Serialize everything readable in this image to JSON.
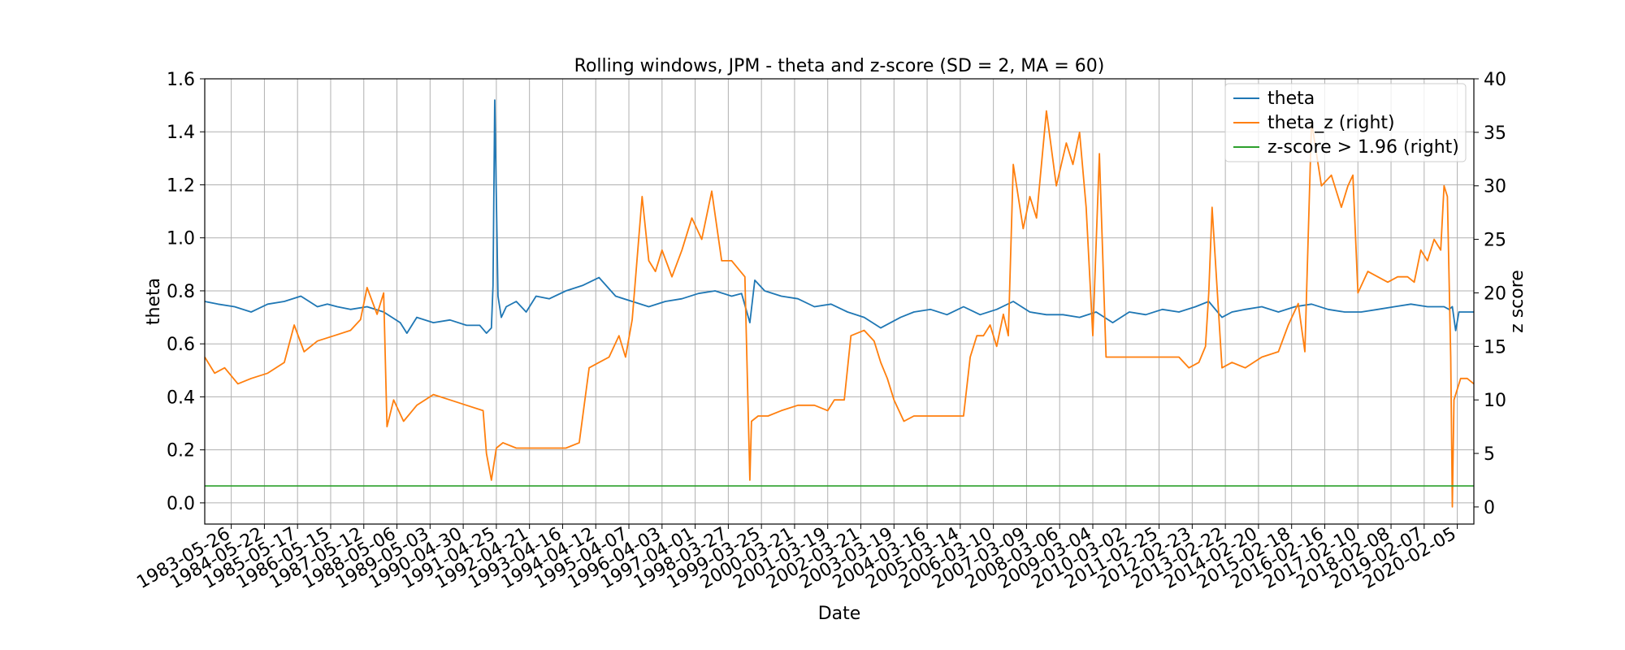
{
  "chart_data": {
    "type": "line",
    "title": "Rolling windows, JPM - theta and z-score (SD = 2, MA = 60)",
    "xlabel": "Date",
    "ylabel": "theta",
    "y2label": "z score",
    "ylim": [
      -0.08,
      1.6
    ],
    "y2lim": [
      -1.6,
      40
    ],
    "grid": true,
    "legend": "top-right",
    "y_ticks": [
      0.0,
      0.2,
      0.4,
      0.6,
      0.8,
      1.0,
      1.2,
      1.4,
      1.6
    ],
    "y_tick_labels": [
      "0.0",
      "0.2",
      "0.4",
      "0.6",
      "0.8",
      "1.0",
      "1.2",
      "1.4",
      "1.6"
    ],
    "y2_ticks": [
      0,
      5,
      10,
      15,
      20,
      25,
      30,
      35,
      40
    ],
    "y2_tick_labels": [
      "0",
      "5",
      "10",
      "15",
      "20",
      "25",
      "30",
      "35",
      "40"
    ],
    "x_tick_labels": [
      "1983-05-26",
      "1984-05-22",
      "1985-05-17",
      "1986-05-15",
      "1987-05-12",
      "1988-05-06",
      "1989-05-03",
      "1990-04-30",
      "1991-04-25",
      "1992-04-21",
      "1993-04-16",
      "1994-04-12",
      "1995-04-07",
      "1996-04-03",
      "1997-04-01",
      "1998-03-27",
      "1999-03-25",
      "2000-03-21",
      "2001-03-19",
      "2002-03-21",
      "2003-03-19",
      "2004-03-16",
      "2005-03-14",
      "2006-03-10",
      "2007-03-09",
      "2008-03-06",
      "2009-03-04",
      "2010-03-02",
      "2011-02-25",
      "2012-02-23",
      "2013-02-22",
      "2014-02-20",
      "2015-02-18",
      "2016-02-16",
      "2017-02-10",
      "2018-02-08",
      "2019-02-07",
      "2020-02-05"
    ],
    "x_range": [
      1982.6,
      2020.9
    ],
    "series": [
      {
        "name": "theta",
        "axis": "left",
        "color": "#1f77b4",
        "x": [
          1982.6,
          1983.0,
          1983.5,
          1984.0,
          1984.5,
          1985.0,
          1985.5,
          1986.0,
          1986.3,
          1986.6,
          1987.0,
          1987.5,
          1988.0,
          1988.5,
          1988.7,
          1989.0,
          1989.5,
          1990.0,
          1990.5,
          1990.9,
          1991.1,
          1991.25,
          1991.3,
          1991.35,
          1991.45,
          1991.55,
          1991.7,
          1992.0,
          1992.3,
          1992.6,
          1993.0,
          1993.5,
          1994.0,
          1994.5,
          1995.0,
          1995.5,
          1996.0,
          1996.5,
          1997.0,
          1997.5,
          1998.0,
          1998.5,
          1998.8,
          1999.05,
          1999.2,
          1999.5,
          2000.0,
          2000.5,
          2001.0,
          2001.5,
          2002.0,
          2002.5,
          2003.0,
          2003.3,
          2003.6,
          2004.0,
          2004.5,
          2005.0,
          2005.5,
          2006.0,
          2006.5,
          2007.0,
          2007.5,
          2008.0,
          2008.5,
          2009.0,
          2009.5,
          2010.0,
          2010.5,
          2011.0,
          2011.5,
          2012.0,
          2012.5,
          2012.9,
          2013.3,
          2013.6,
          2014.0,
          2014.5,
          2015.0,
          2015.5,
          2016.0,
          2016.5,
          2017.0,
          2017.5,
          2018.0,
          2018.5,
          2019.0,
          2019.5,
          2020.0,
          2020.15,
          2020.25,
          2020.35,
          2020.45,
          2020.6,
          2020.9
        ],
        "values": [
          0.76,
          0.75,
          0.74,
          0.72,
          0.75,
          0.76,
          0.78,
          0.74,
          0.75,
          0.74,
          0.73,
          0.74,
          0.72,
          0.68,
          0.64,
          0.7,
          0.68,
          0.69,
          0.67,
          0.67,
          0.64,
          0.66,
          0.82,
          1.52,
          0.78,
          0.7,
          0.74,
          0.76,
          0.72,
          0.78,
          0.77,
          0.8,
          0.82,
          0.85,
          0.78,
          0.76,
          0.74,
          0.76,
          0.77,
          0.79,
          0.8,
          0.78,
          0.79,
          0.68,
          0.84,
          0.8,
          0.78,
          0.77,
          0.74,
          0.75,
          0.72,
          0.7,
          0.66,
          0.68,
          0.7,
          0.72,
          0.73,
          0.71,
          0.74,
          0.71,
          0.73,
          0.76,
          0.72,
          0.71,
          0.71,
          0.7,
          0.72,
          0.68,
          0.72,
          0.71,
          0.73,
          0.72,
          0.74,
          0.76,
          0.7,
          0.72,
          0.73,
          0.74,
          0.72,
          0.74,
          0.75,
          0.73,
          0.72,
          0.72,
          0.73,
          0.74,
          0.75,
          0.74,
          0.74,
          0.73,
          0.74,
          0.65,
          0.72,
          0.72,
          0.72
        ]
      },
      {
        "name": "theta_z (right)",
        "axis": "right",
        "color": "#ff7f0e",
        "x": [
          1982.6,
          1982.9,
          1983.2,
          1983.6,
          1984.0,
          1984.5,
          1985.0,
          1985.3,
          1985.6,
          1986.0,
          1986.5,
          1987.0,
          1987.3,
          1987.5,
          1987.8,
          1988.0,
          1988.1,
          1988.3,
          1988.6,
          1989.0,
          1989.5,
          1990.0,
          1990.5,
          1991.0,
          1991.1,
          1991.25,
          1991.4,
          1991.6,
          1992.0,
          1992.5,
          1993.0,
          1993.5,
          1993.9,
          1994.2,
          1994.5,
          1994.8,
          1995.1,
          1995.3,
          1995.5,
          1995.8,
          1996.0,
          1996.2,
          1996.4,
          1996.7,
          1997.0,
          1997.3,
          1997.6,
          1997.9,
          1998.2,
          1998.5,
          1998.9,
          1999.05,
          1999.1,
          1999.3,
          1999.6,
          2000.0,
          2000.5,
          2001.0,
          2001.4,
          2001.6,
          2001.9,
          2002.1,
          2002.5,
          2002.8,
          2003.0,
          2003.2,
          2003.4,
          2003.7,
          2004.0,
          2004.5,
          2005.0,
          2005.3,
          2005.5,
          2005.7,
          2005.9,
          2006.1,
          2006.3,
          2006.5,
          2006.7,
          2006.85,
          2007.0,
          2007.3,
          2007.5,
          2007.7,
          2008.0,
          2008.3,
          2008.6,
          2008.8,
          2009.0,
          2009.2,
          2009.4,
          2009.6,
          2009.8,
          2010.0,
          2010.5,
          2011.0,
          2011.5,
          2012.0,
          2012.3,
          2012.6,
          2012.8,
          2012.9,
          2013.0,
          2013.3,
          2013.6,
          2014.0,
          2014.5,
          2015.0,
          2015.3,
          2015.6,
          2015.8,
          2016.0,
          2016.3,
          2016.6,
          2016.9,
          2017.1,
          2017.25,
          2017.4,
          2017.7,
          2018.0,
          2018.3,
          2018.6,
          2018.9,
          2019.1,
          2019.3,
          2019.5,
          2019.7,
          2019.9,
          2020.0,
          2020.1,
          2020.2,
          2020.25,
          2020.3,
          2020.4,
          2020.5,
          2020.7,
          2020.9
        ],
        "values": [
          14.0,
          12.5,
          13.0,
          11.5,
          12.0,
          12.5,
          13.5,
          17.0,
          14.5,
          15.5,
          16.0,
          16.5,
          17.5,
          20.5,
          18.0,
          20.0,
          7.5,
          10.0,
          8.0,
          9.5,
          10.5,
          10.0,
          9.5,
          9.0,
          5.0,
          2.5,
          5.5,
          6.0,
          5.5,
          5.5,
          5.5,
          5.5,
          6.0,
          13.0,
          13.5,
          14.0,
          16.0,
          14.0,
          17.5,
          29.0,
          23.0,
          22.0,
          24.0,
          21.5,
          24.0,
          27.0,
          25.0,
          29.5,
          23.0,
          23.0,
          21.5,
          2.5,
          8.0,
          8.5,
          8.5,
          9.0,
          9.5,
          9.5,
          9.0,
          10.0,
          10.0,
          16.0,
          16.5,
          15.5,
          13.5,
          12.0,
          10.0,
          8.0,
          8.5,
          8.5,
          8.5,
          8.5,
          8.5,
          14.0,
          16.0,
          16.0,
          17.0,
          15.0,
          18.0,
          16.0,
          32.0,
          26.0,
          29.0,
          27.0,
          37.0,
          30.0,
          34.0,
          32.0,
          35.0,
          28.0,
          16.0,
          33.0,
          14.0,
          14.0,
          14.0,
          14.0,
          14.0,
          14.0,
          13.0,
          13.5,
          15.0,
          20.0,
          28.0,
          13.0,
          13.5,
          13.0,
          14.0,
          14.5,
          17.0,
          19.0,
          14.5,
          36.0,
          30.0,
          31.0,
          28.0,
          30.0,
          31.0,
          20.0,
          22.0,
          21.5,
          21.0,
          21.5,
          21.5,
          21.0,
          24.0,
          23.0,
          25.0,
          24.0,
          30.0,
          29.0,
          14.0,
          0.0,
          10.0,
          11.0,
          12.0,
          12.0,
          11.5
        ]
      },
      {
        "name": "z-score > 1.96 (right)",
        "axis": "right",
        "color": "#2ca02c",
        "x": [
          1982.6,
          2020.9
        ],
        "values": [
          1.96,
          1.96
        ]
      }
    ]
  }
}
